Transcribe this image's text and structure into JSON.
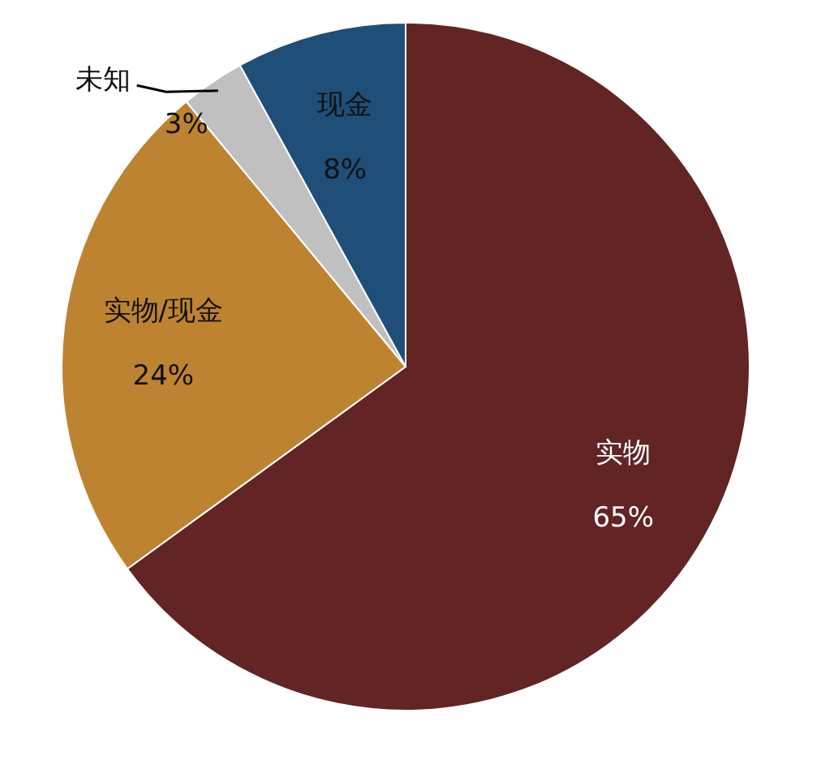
{
  "chart_data": {
    "type": "pie",
    "categories": [
      "实物",
      "实物/现金",
      "未知",
      "现金"
    ],
    "values": [
      65,
      24,
      3,
      8
    ],
    "colors": [
      "#622424",
      "#be8330",
      "#c0c0c0",
      "#1f4e79"
    ],
    "value_labels": [
      "65%",
      "24%",
      "3%",
      "8%"
    ]
  }
}
